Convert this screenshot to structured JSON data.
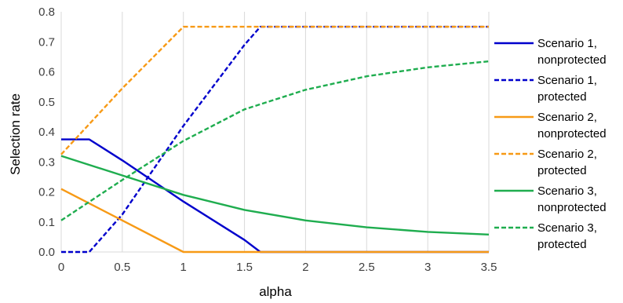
{
  "chart_data": {
    "type": "line",
    "title": "",
    "xlabel": "alpha",
    "ylabel": "Selection rate",
    "xlim": [
      0,
      3.5
    ],
    "ylim": [
      0,
      0.8
    ],
    "x_ticks": [
      0,
      0.5,
      1,
      1.5,
      2,
      2.5,
      3,
      3.5
    ],
    "x_tick_labels": [
      "0",
      "0.5",
      "1",
      "1.5",
      "2",
      "2.5",
      "3",
      "3.5"
    ],
    "y_ticks": [
      0,
      0.1,
      0.2,
      0.3,
      0.4,
      0.5,
      0.6,
      0.7,
      0.8
    ],
    "y_tick_labels": [
      "0.0",
      "0.1",
      "0.2",
      "0.3",
      "0.4",
      "0.5",
      "0.6",
      "0.7",
      "0.8"
    ],
    "grid": "vertical",
    "legend_position": "right",
    "series": [
      {
        "name": "Scenario 1, nonprotected",
        "legend_lines": [
          "Scenario 1,",
          "nonprotected"
        ],
        "color": "#0000CC",
        "dash": "solid",
        "x": [
          0,
          0.23,
          0.5,
          1,
          1.5,
          1.63,
          2,
          2.5,
          3,
          3.5
        ],
        "y": [
          0.375,
          0.375,
          0.305,
          0.168,
          0.04,
          0,
          0,
          0,
          0,
          0
        ]
      },
      {
        "name": "Scenario 1, protected",
        "legend_lines": [
          "Scenario 1,",
          "protected"
        ],
        "color": "#0000CC",
        "dash": "dashed",
        "x": [
          0,
          0.23,
          0.5,
          1,
          1.5,
          1.63,
          2,
          2.5,
          3,
          3.5
        ],
        "y": [
          0,
          0,
          0.125,
          0.42,
          0.69,
          0.75,
          0.75,
          0.75,
          0.75,
          0.75
        ]
      },
      {
        "name": "Scenario 2, nonprotected",
        "legend_lines": [
          "Scenario 2,",
          "nonprotected"
        ],
        "color": "#F79A16",
        "dash": "solid",
        "x": [
          0,
          0.5,
          1,
          1.5,
          2,
          2.5,
          3,
          3.5
        ],
        "y": [
          0.21,
          0.105,
          0,
          0,
          0,
          0,
          0,
          0
        ]
      },
      {
        "name": "Scenario 2, protected",
        "legend_lines": [
          "Scenario 2,",
          "protected"
        ],
        "color": "#F79A16",
        "dash": "dashed",
        "x": [
          0,
          0.5,
          1,
          1.5,
          2,
          2.5,
          3,
          3.5
        ],
        "y": [
          0.325,
          0.545,
          0.75,
          0.75,
          0.75,
          0.75,
          0.75,
          0.75
        ]
      },
      {
        "name": "Scenario 3, nonprotected",
        "legend_lines": [
          "Scenario 3,",
          "nonprotected"
        ],
        "color": "#1FAD4F",
        "dash": "solid",
        "x": [
          0,
          0.5,
          1,
          1.5,
          2,
          2.5,
          3,
          3.5
        ],
        "y": [
          0.32,
          0.255,
          0.19,
          0.14,
          0.105,
          0.082,
          0.067,
          0.058
        ]
      },
      {
        "name": "Scenario 3, protected",
        "legend_lines": [
          "Scenario 3,",
          "protected"
        ],
        "color": "#1FAD4F",
        "dash": "dashed",
        "x": [
          0,
          0.5,
          1,
          1.5,
          2,
          2.5,
          3,
          3.5
        ],
        "y": [
          0.105,
          0.24,
          0.37,
          0.475,
          0.54,
          0.585,
          0.615,
          0.635
        ]
      }
    ]
  }
}
